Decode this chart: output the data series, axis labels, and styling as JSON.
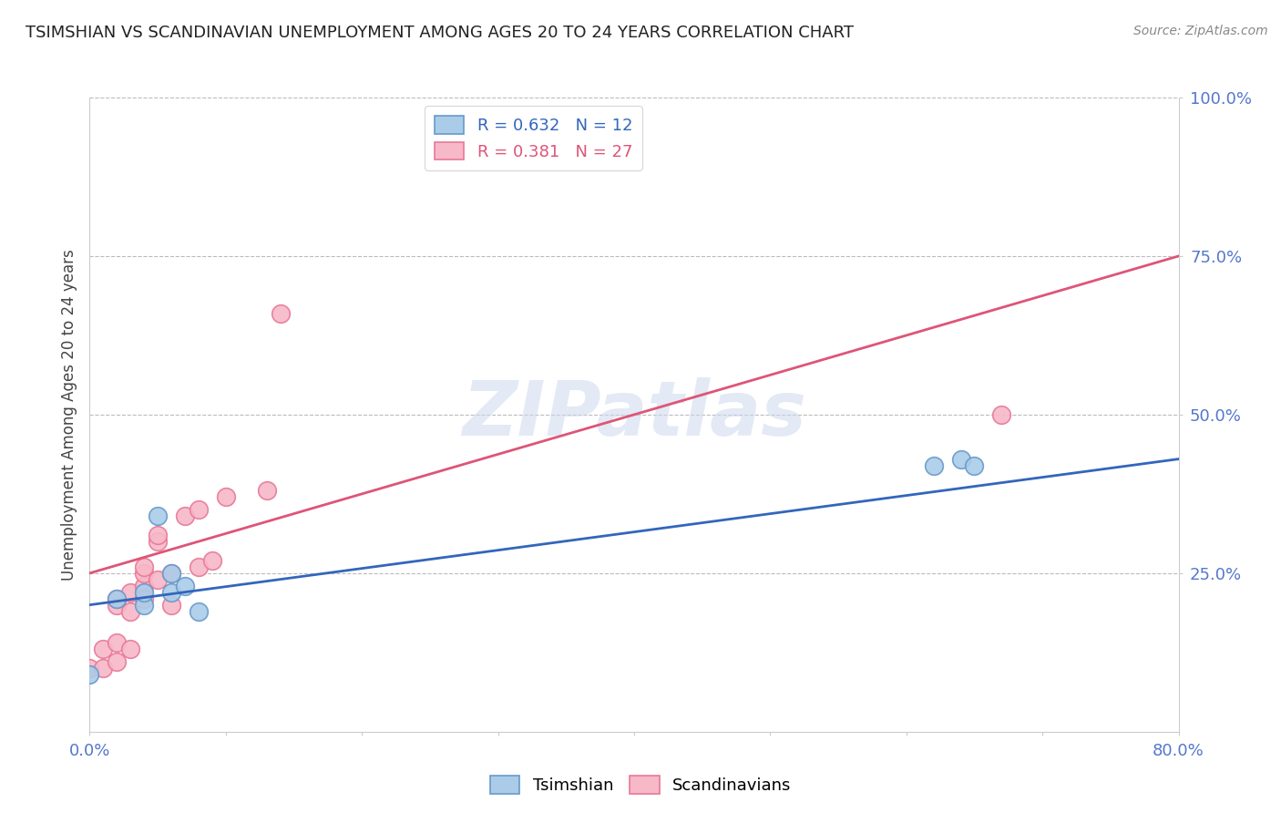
{
  "title": "TSIMSHIAN VS SCANDINAVIAN UNEMPLOYMENT AMONG AGES 20 TO 24 YEARS CORRELATION CHART",
  "source": "Source: ZipAtlas.com",
  "ylabel": "Unemployment Among Ages 20 to 24 years",
  "xlim": [
    0.0,
    0.8
  ],
  "ylim": [
    0.0,
    1.0
  ],
  "xticks": [
    0.0,
    0.1,
    0.2,
    0.3,
    0.4,
    0.5,
    0.6,
    0.7,
    0.8
  ],
  "xticklabels": [
    "0.0%",
    "",
    "",
    "",
    "",
    "",
    "",
    "",
    "80.0%"
  ],
  "ytick_positions": [
    0.25,
    0.5,
    0.75,
    1.0
  ],
  "ytick_labels": [
    "25.0%",
    "50.0%",
    "75.0%",
    "100.0%"
  ],
  "tsimshian_color": "#aacce8",
  "tsimshian_edge": "#6699cc",
  "scandinavian_color": "#f7b8c8",
  "scandinavian_edge": "#e87898",
  "tsimshian_line_color": "#3366bb",
  "scandinavian_line_color": "#dd5577",
  "tsimshian_R": 0.632,
  "tsimshian_N": 12,
  "scandinavian_R": 0.381,
  "scandinavian_N": 27,
  "tsimshian_points_x": [
    0.0,
    0.02,
    0.04,
    0.04,
    0.05,
    0.06,
    0.06,
    0.07,
    0.08,
    0.62,
    0.64,
    0.65
  ],
  "tsimshian_points_y": [
    0.09,
    0.21,
    0.2,
    0.22,
    0.34,
    0.25,
    0.22,
    0.23,
    0.19,
    0.42,
    0.43,
    0.42
  ],
  "scandinavian_points_x": [
    0.0,
    0.01,
    0.01,
    0.02,
    0.02,
    0.02,
    0.02,
    0.03,
    0.03,
    0.03,
    0.04,
    0.04,
    0.04,
    0.04,
    0.05,
    0.05,
    0.05,
    0.06,
    0.06,
    0.07,
    0.08,
    0.08,
    0.09,
    0.1,
    0.13,
    0.14,
    0.67
  ],
  "scandinavian_points_y": [
    0.1,
    0.1,
    0.13,
    0.11,
    0.14,
    0.2,
    0.21,
    0.13,
    0.19,
    0.22,
    0.23,
    0.25,
    0.26,
    0.21,
    0.3,
    0.31,
    0.24,
    0.25,
    0.2,
    0.34,
    0.35,
    0.26,
    0.27,
    0.37,
    0.38,
    0.66,
    0.5
  ],
  "tsimshian_trend_x": [
    0.0,
    0.8
  ],
  "tsimshian_trend_y": [
    0.2,
    0.43
  ],
  "scandinavian_trend_x": [
    0.0,
    0.8
  ],
  "scandinavian_trend_y": [
    0.25,
    0.75
  ],
  "watermark": "ZIPatlas",
  "background_color": "#ffffff",
  "grid_color": "#bbbbbb",
  "title_color": "#222222",
  "axis_label_color": "#444444",
  "tick_label_color": "#5577cc",
  "marker_size": 200,
  "line_width": 2.0
}
